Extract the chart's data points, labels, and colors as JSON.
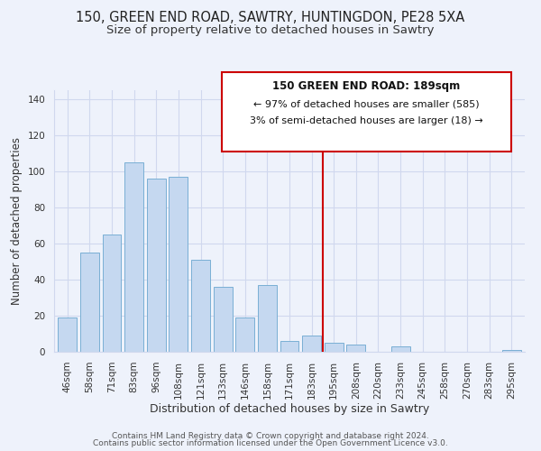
{
  "title": "150, GREEN END ROAD, SAWTRY, HUNTINGDON, PE28 5XA",
  "subtitle": "Size of property relative to detached houses in Sawtry",
  "xlabel": "Distribution of detached houses by size in Sawtry",
  "ylabel": "Number of detached properties",
  "bar_labels": [
    "46sqm",
    "58sqm",
    "71sqm",
    "83sqm",
    "96sqm",
    "108sqm",
    "121sqm",
    "133sqm",
    "146sqm",
    "158sqm",
    "171sqm",
    "183sqm",
    "195sqm",
    "208sqm",
    "220sqm",
    "233sqm",
    "245sqm",
    "258sqm",
    "270sqm",
    "283sqm",
    "295sqm"
  ],
  "bar_values": [
    19,
    55,
    65,
    105,
    96,
    97,
    51,
    36,
    19,
    37,
    6,
    9,
    5,
    4,
    0,
    3,
    0,
    0,
    0,
    0,
    1
  ],
  "bar_color": "#c5d8f0",
  "bar_edge_color": "#7aafd4",
  "vline_color": "#cc0000",
  "vline_x_index": 11.5,
  "annotation_title": "150 GREEN END ROAD: 189sqm",
  "annotation_line1": "← 97% of detached houses are smaller (585)",
  "annotation_line2": "3% of semi-detached houses are larger (18) →",
  "ylim": [
    0,
    145
  ],
  "footer1": "Contains HM Land Registry data © Crown copyright and database right 2024.",
  "footer2": "Contains public sector information licensed under the Open Government Licence v3.0.",
  "bg_color": "#eef2fb",
  "grid_color": "#d0d8ee",
  "title_fontsize": 10.5,
  "subtitle_fontsize": 9.5,
  "ylabel_fontsize": 8.5,
  "xlabel_fontsize": 9,
  "tick_fontsize": 7.5,
  "footer_fontsize": 6.5
}
